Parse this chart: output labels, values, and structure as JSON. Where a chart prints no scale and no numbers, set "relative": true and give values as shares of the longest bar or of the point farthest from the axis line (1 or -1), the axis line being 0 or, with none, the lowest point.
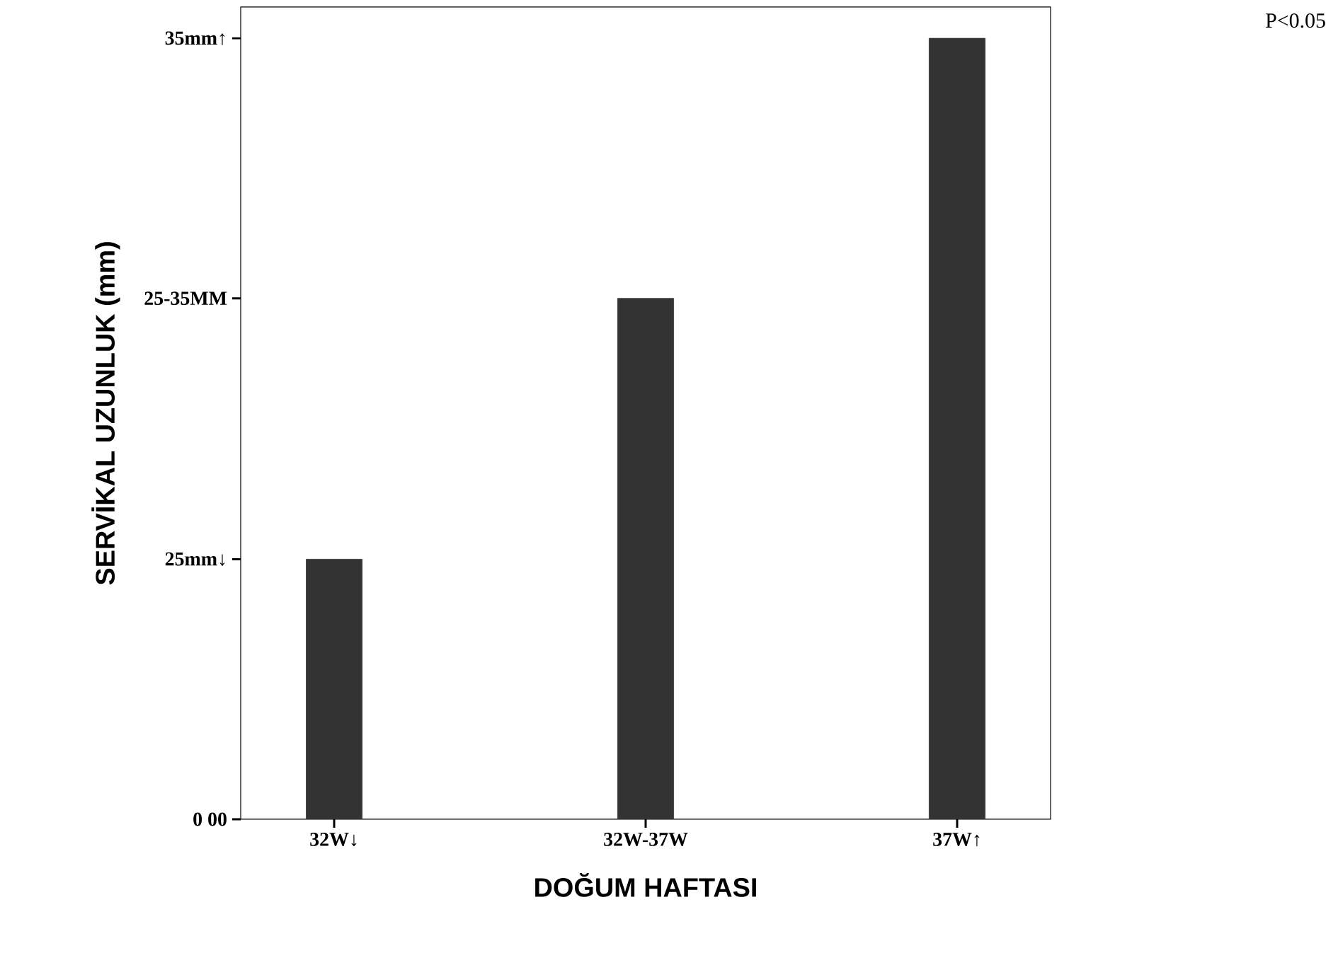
{
  "chart_data": {
    "type": "bar",
    "categories": [
      "32W↓",
      "32W-37W",
      "37W↑"
    ],
    "values": [
      0.333,
      0.667,
      1
    ],
    "relative": true,
    "color": "#333333",
    "xlabel": "DOĞUM HAFTASI",
    "ylabel": "SERVİKAL UZUNLUK (mm)",
    "annotations": [
      "0 00",
      "25mm↓",
      "25-35MM",
      "35mm↑",
      "P<0.05"
    ]
  }
}
